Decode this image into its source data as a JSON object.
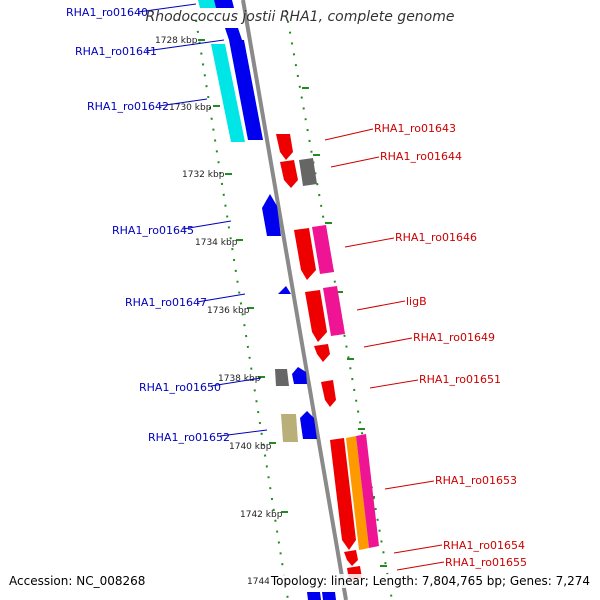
{
  "title": "Rhodococcus jostii RHA1, complete genome",
  "accession_label": "Accession: NC_008268",
  "summary": "Topology: linear; Length: 7,804,765 bp; Genes: 7,274",
  "scale_ticks": [
    "1728 kbp",
    "1730 kbp",
    "1732 kbp",
    "1734 kbp",
    "1736 kbp",
    "1738 kbp",
    "1740 kbp",
    "1742 kbp",
    "1744"
  ],
  "genes_left": [
    "RHA1_ro01640",
    "RHA1_ro01641",
    "RHA1_ro01642",
    "RHA1_ro01645",
    "RHA1_ro01647",
    "RHA1_ro01650",
    "RHA1_ro01652"
  ],
  "genes_right": [
    "RHA1_ro01643",
    "RHA1_ro01644",
    "RHA1_ro01646",
    "ligB",
    "RHA1_ro01649",
    "RHA1_ro01651",
    "RHA1_ro01653",
    "RHA1_ro01654",
    "RHA1_ro01655"
  ],
  "colors": {
    "left_label": "#0000bb",
    "right_label": "#cc0000",
    "backbone": "#8a8a8a",
    "dots": "#228b22",
    "gene_blue": "#0000ee",
    "gene_cyan": "#00e5e5",
    "gene_red": "#ee0000",
    "gene_pink": "#ee1493",
    "gene_gray": "#666666",
    "gene_khaki": "#b8b078",
    "gene_orange": "#ff9900"
  }
}
